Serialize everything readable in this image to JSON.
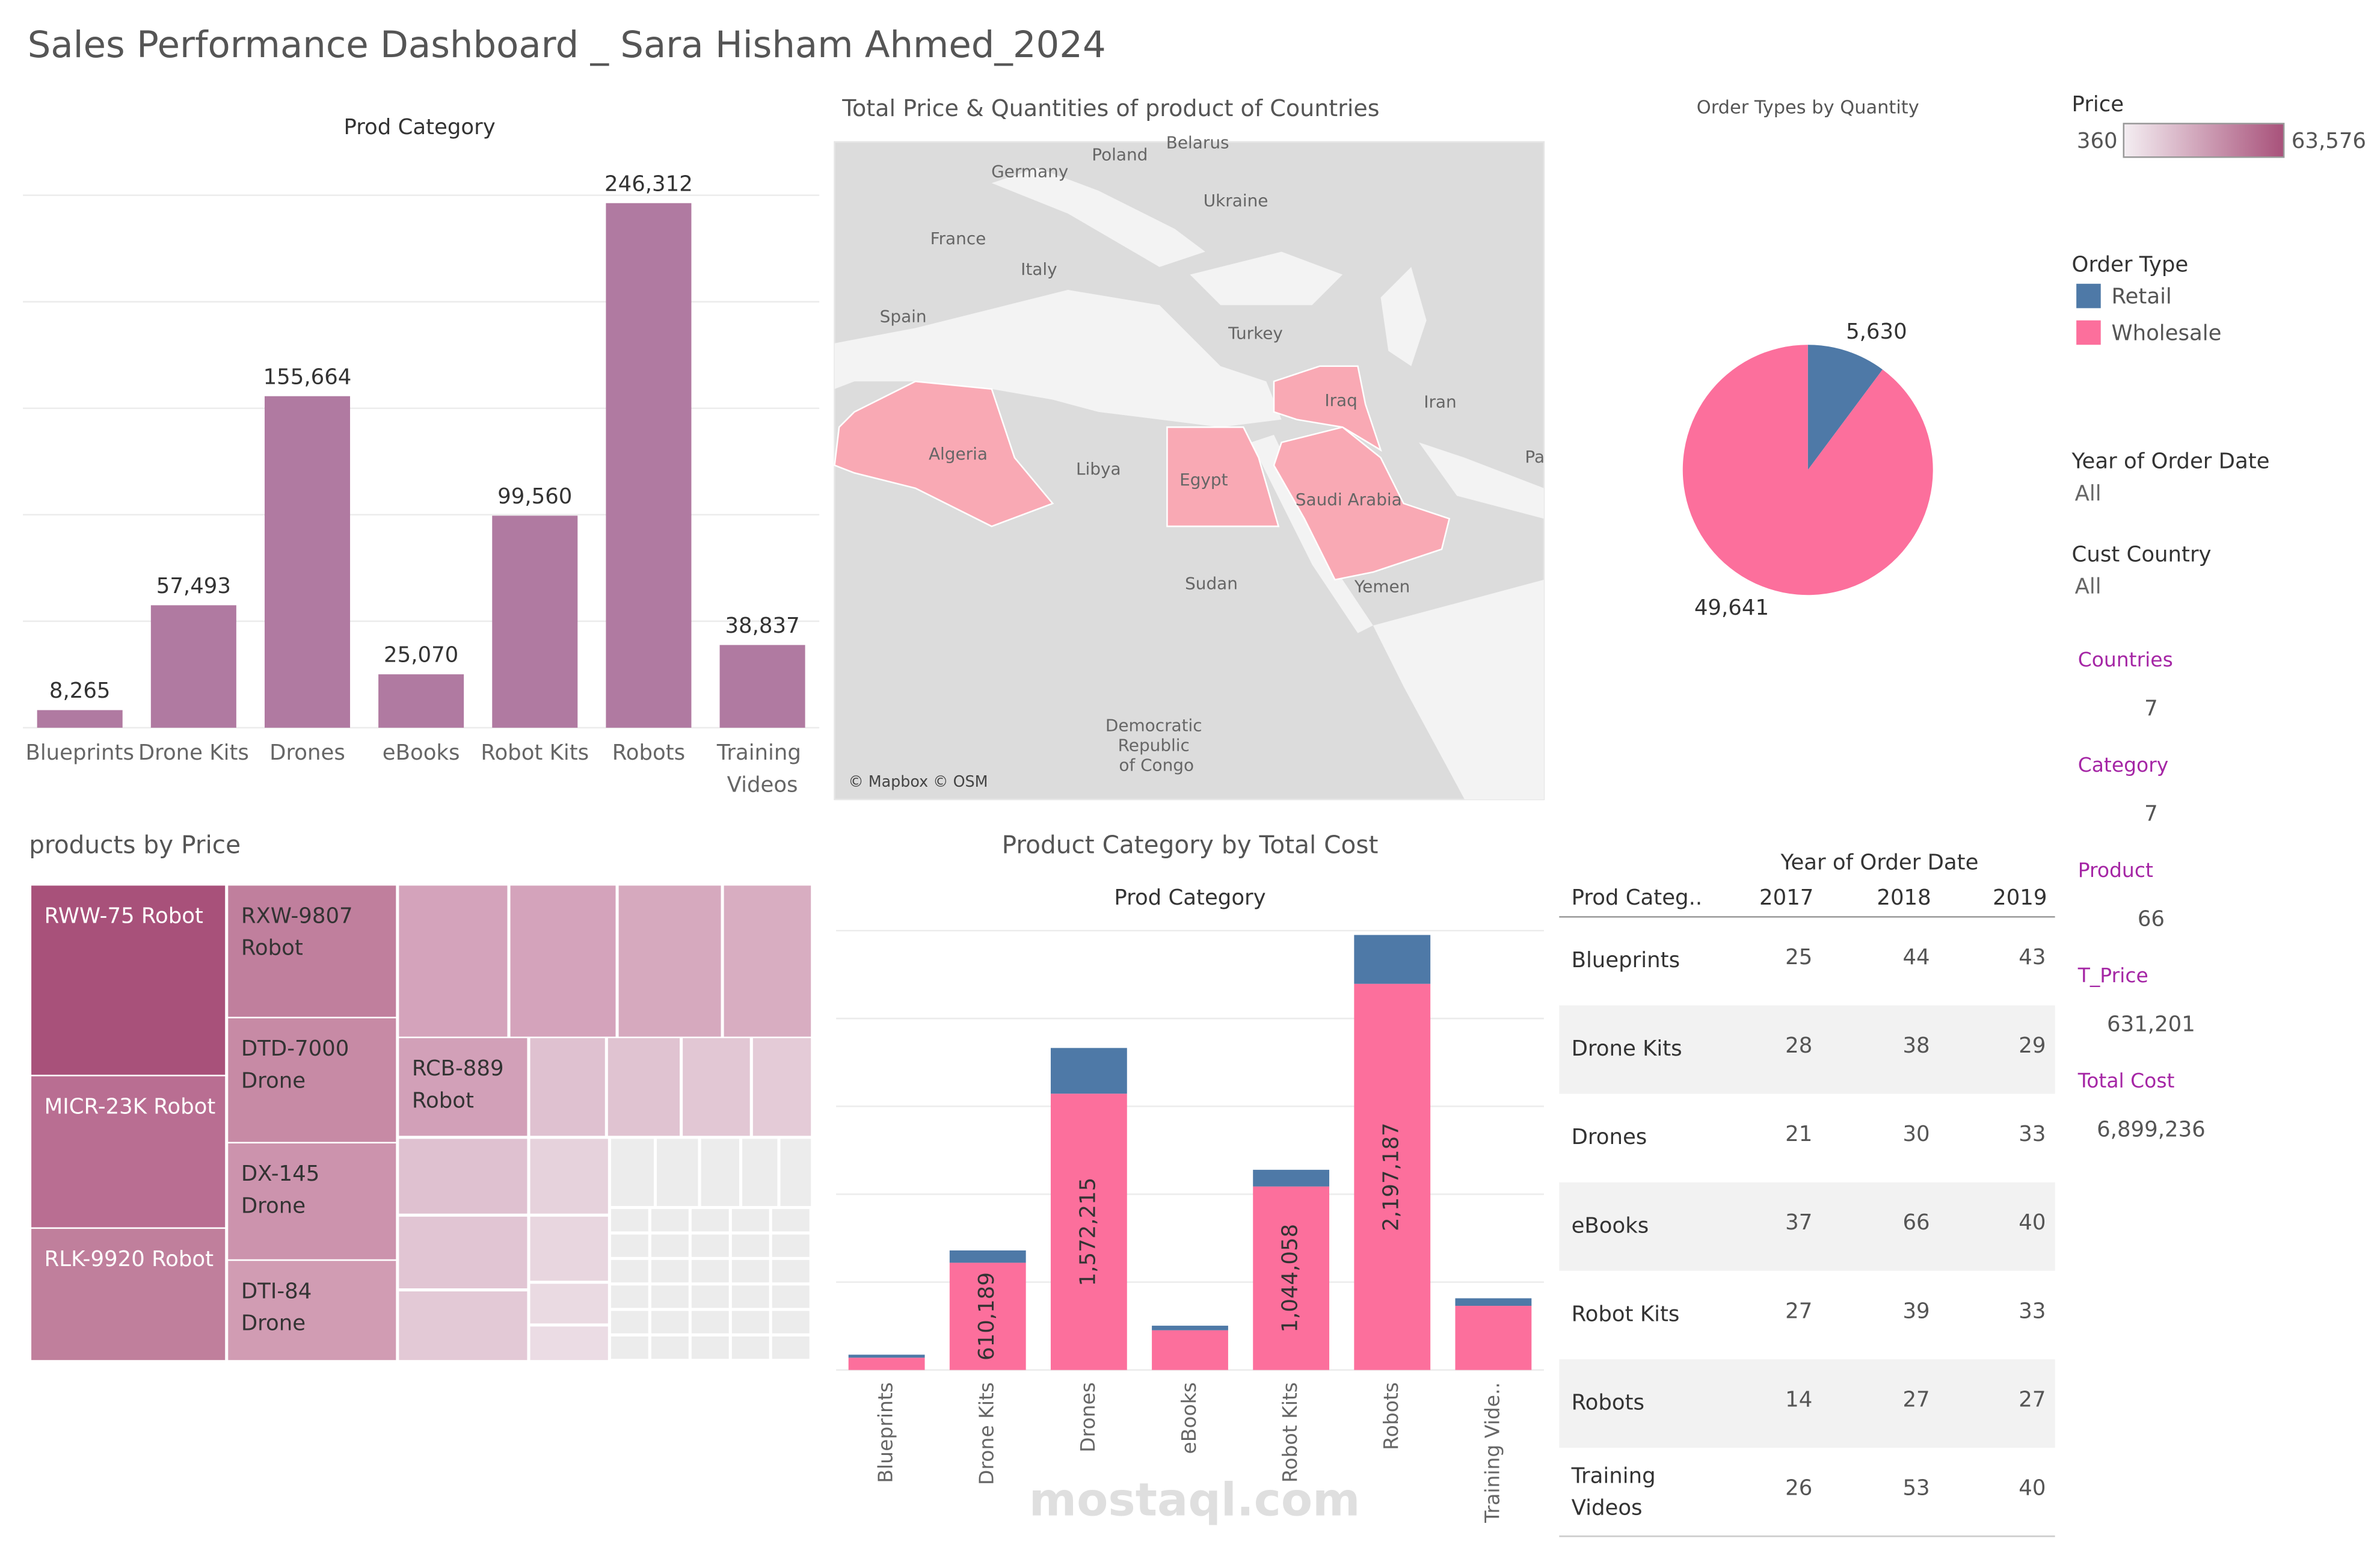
{
  "title": "Sales Performance Dashboard _ Sara Hisham Ahmed_2024",
  "chart_data": [
    {
      "type": "bar",
      "title": "Prod Category",
      "categories": [
        "Blueprints",
        "Drone Kits",
        "Drones",
        "eBooks",
        "Robot Kits",
        "Robots",
        "Training Videos"
      ],
      "values": [
        8265,
        57493,
        155664,
        25070,
        99560,
        246312,
        38837
      ],
      "value_labels": [
        "8,265",
        "57,493",
        "155,664",
        "25,070",
        "99,560",
        "246,312",
        "38,837"
      ],
      "color": "#b07aa1",
      "ylim": [
        0,
        250000
      ],
      "yticks": [
        0,
        50000,
        100000,
        150000,
        200000,
        250000
      ],
      "grid": true
    },
    {
      "type": "pie",
      "title": "Order Types by Quantity",
      "legend_title": "Order Type",
      "categories": [
        "Retail",
        "Wholesale"
      ],
      "values": [
        5630,
        49641
      ],
      "value_labels": [
        "5,630",
        "49,641"
      ],
      "colors": [
        "#4e79a7",
        "#fc6f9c"
      ]
    },
    {
      "type": "stacked_bar",
      "title": "Product Category by Total Cost",
      "subtitle": "Prod Category",
      "categories": [
        "Blueprints",
        "Drone Kits",
        "Drones",
        "eBooks",
        "Robot Kits",
        "Robots",
        "Training Vide.."
      ],
      "series": [
        {
          "name": "Wholesale",
          "color": "#fc6f9c",
          "values": [
            70000,
            610189,
            1572215,
            226000,
            1044058,
            2197187,
            365000
          ],
          "value_labels": [
            null,
            "610,189",
            "1,572,215",
            null,
            "1,044,058",
            "2,197,187",
            null
          ]
        },
        {
          "name": "Retail",
          "color": "#4e79a7",
          "values": [
            17000,
            70000,
            260000,
            26000,
            95000,
            278000,
            43000
          ]
        }
      ],
      "ylim": [
        0,
        2500000
      ],
      "yticks": [
        0,
        500000,
        1000000,
        1500000,
        2000000,
        2500000
      ],
      "grid": true
    }
  ],
  "map": {
    "title": "Total Price & Quantities of product of Countries",
    "credit": "© Mapbox © OSM",
    "labels": [
      "Belarus",
      "Poland",
      "Germany",
      "Ukraine",
      "France",
      "Italy",
      "Spain",
      "Turkey",
      "Iran",
      "Iraq",
      "Algeria",
      "Libya",
      "Egypt",
      "Saudi Arabia",
      "Sudan",
      "Yemen",
      "Democratic Republic of Congo",
      "Pa"
    ]
  },
  "treemap": {
    "title": "products by Price",
    "tiles": [
      "RWW-75 Robot",
      "MICR-23K Robot",
      "RLK-9920 Robot",
      "RXW-9807 Robot",
      "DTD-7000 Drone",
      "DX-145 Drone",
      "DTI-84 Drone",
      "RCB-889 Robot"
    ]
  },
  "table": {
    "title": "Year of Order Date",
    "header": [
      "Prod Categ..",
      "2017",
      "2018",
      "2019"
    ],
    "rows": [
      [
        "Blueprints",
        "25",
        "44",
        "43"
      ],
      [
        "Drone Kits",
        "28",
        "38",
        "29"
      ],
      [
        "Drones",
        "21",
        "30",
        "33"
      ],
      [
        "eBooks",
        "37",
        "66",
        "40"
      ],
      [
        "Robot Kits",
        "27",
        "39",
        "33"
      ],
      [
        "Robots",
        "14",
        "27",
        "27"
      ],
      [
        "Training Videos",
        "26",
        "53",
        "40"
      ]
    ]
  },
  "price_legend": {
    "title": "Price",
    "min": "360",
    "max": "63,576"
  },
  "filters": [
    {
      "title": "Year of Order Date",
      "value": "All"
    },
    {
      "title": "Cust Country",
      "value": "All"
    }
  ],
  "kpis": [
    {
      "label": "Countries",
      "value": "7"
    },
    {
      "label": "Category",
      "value": "7"
    },
    {
      "label": "Product",
      "value": "66"
    },
    {
      "label": "T_Price",
      "value": "631,201"
    },
    {
      "label": "Total Cost",
      "value": "6,899,236"
    }
  ],
  "watermark": "mostaql.com"
}
